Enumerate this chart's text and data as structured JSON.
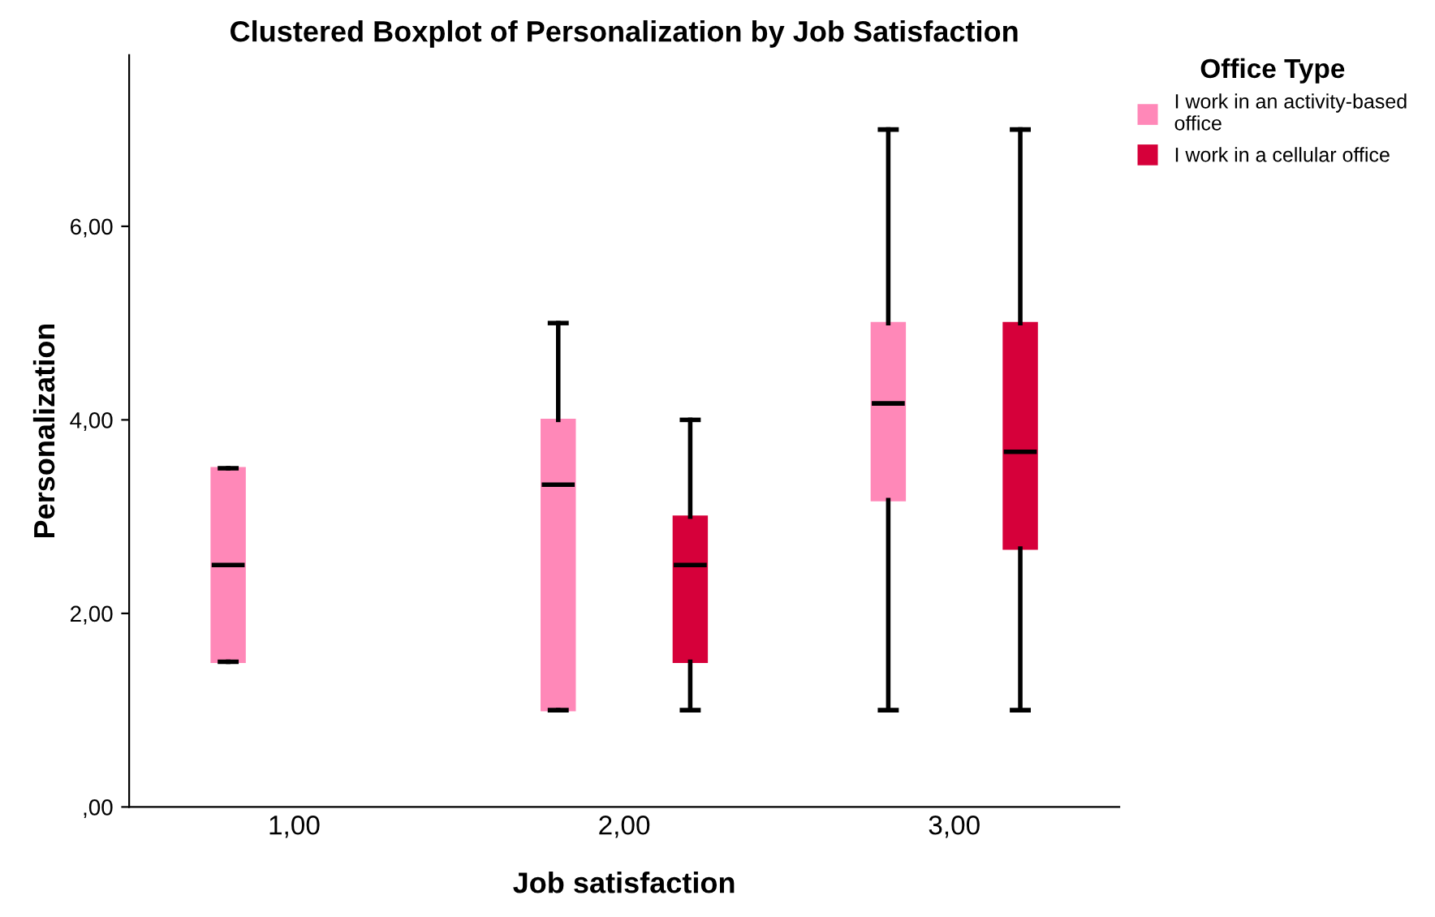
{
  "chart_data": {
    "type": "box",
    "title": "Clustered Boxplot of Personalization by Job Satisfaction",
    "xlabel": "Job satisfaction",
    "ylabel": "Personalization",
    "legend_title": "Office Type",
    "legend": "top right",
    "grid": false,
    "categories": [
      "1,00",
      "2,00",
      "3,00"
    ],
    "ylim": [
      0,
      7.77
    ],
    "yticks": [
      {
        "value": 0,
        "label": ",00"
      },
      {
        "value": 2,
        "label": "2,00"
      },
      {
        "value": 4,
        "label": "4,00"
      },
      {
        "value": 6,
        "label": "6,00"
      }
    ],
    "series": [
      {
        "name": "I work in an activity-based office",
        "color": "#ff88b8",
        "boxes": [
          {
            "low": 1.5,
            "q1": 1.5,
            "median": 2.5,
            "q3": 3.5,
            "high": 3.5
          },
          {
            "low": 1,
            "q1": 1,
            "median": 3.33,
            "q3": 4,
            "high": 5
          },
          {
            "low": 1,
            "q1": 3.17,
            "median": 4.17,
            "q3": 5,
            "high": 7
          }
        ]
      },
      {
        "name": "I work in a cellular office",
        "color": "#d6003a",
        "boxes": [
          null,
          {
            "low": 1,
            "q1": 1.5,
            "median": 2.5,
            "q3": 3,
            "high": 4
          },
          {
            "low": 1,
            "q1": 2.67,
            "median": 3.67,
            "q3": 5,
            "high": 7
          }
        ]
      }
    ]
  }
}
